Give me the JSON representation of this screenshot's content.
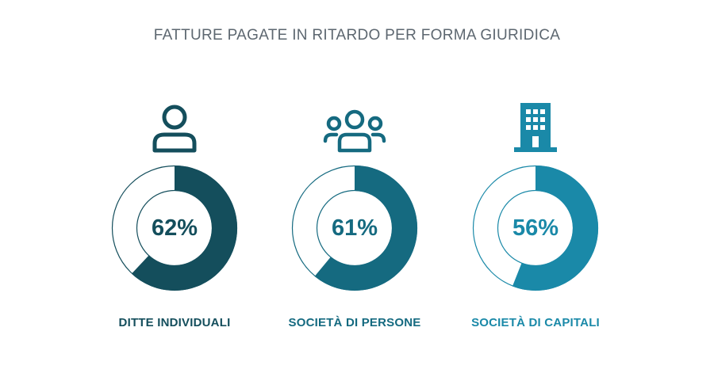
{
  "chart_data": {
    "type": "pie",
    "title": "FATTURE PAGATE IN RITARDO PER FORMA GIURIDICA",
    "categories": [
      "DITTE INDIVIDUALI",
      "SOCIETÀ DI PERSONE",
      "SOCIETÀ DI CAPITALI"
    ],
    "values": [
      62,
      61,
      56
    ],
    "value_labels": [
      "62%",
      "61%",
      "56%"
    ],
    "unit": "%",
    "max": 100,
    "colors": [
      "#144e5c",
      "#156a80",
      "#1a89a8"
    ],
    "remainder_color": "#ffffff",
    "icons": [
      "person-icon",
      "group-icon",
      "building-icon"
    ]
  }
}
